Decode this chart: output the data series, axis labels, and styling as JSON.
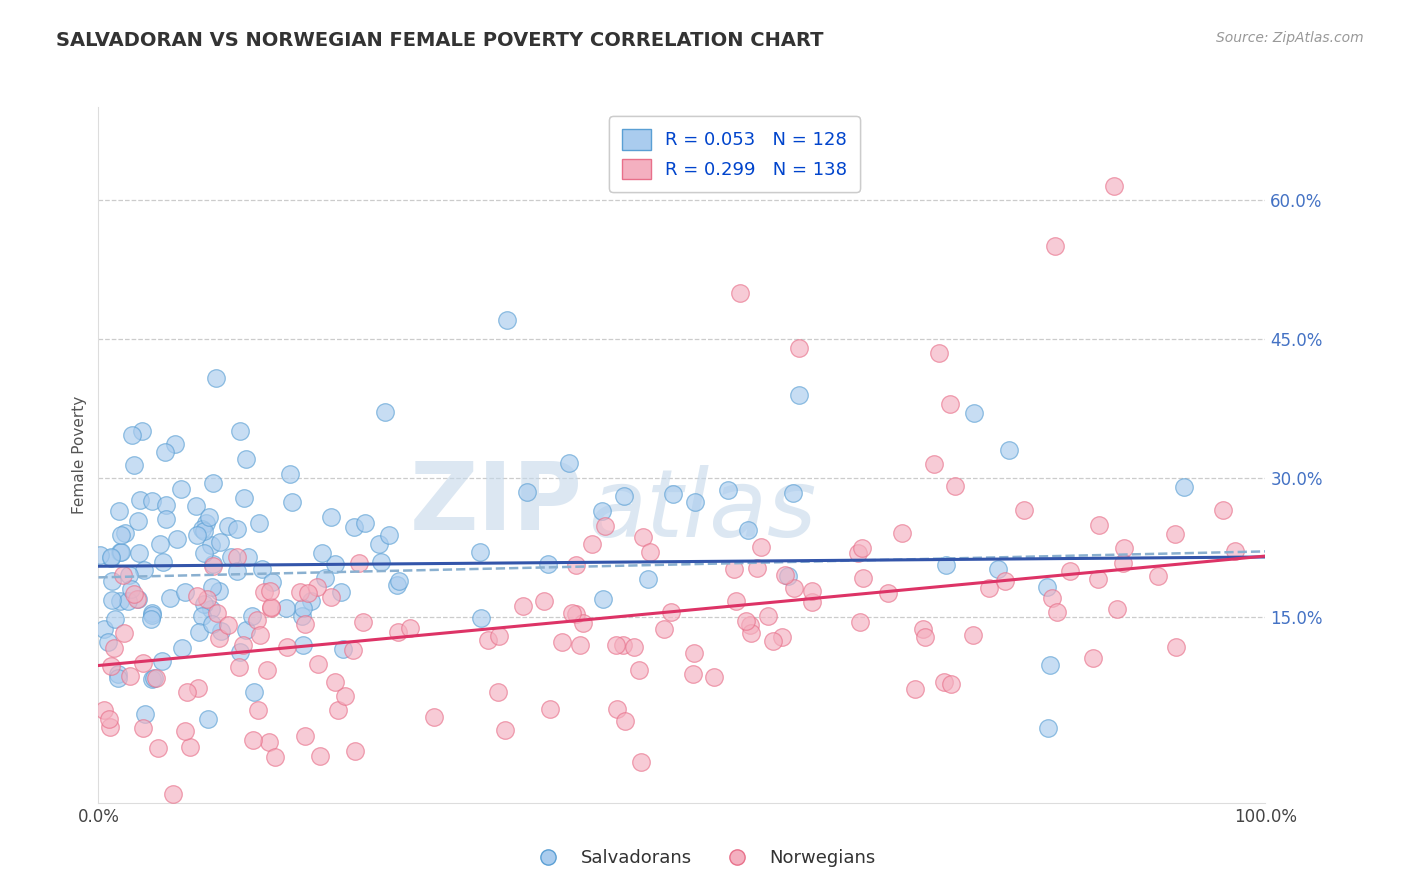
{
  "title": "SALVADORAN VS NORWEGIAN FEMALE POVERTY CORRELATION CHART",
  "source": "Source: ZipAtlas.com",
  "ylabel": "Female Poverty",
  "xlim": [
    0,
    1.0
  ],
  "ylim": [
    -0.05,
    0.7
  ],
  "ytick_labels_right": [
    "15.0%",
    "30.0%",
    "45.0%",
    "60.0%"
  ],
  "ytick_vals_right": [
    0.15,
    0.3,
    0.45,
    0.6
  ],
  "salvadoran_label": "Salvadorans",
  "norwegian_label": "Norwegians",
  "blue_color": "#5a9fd4",
  "pink_color": "#e8708a",
  "blue_fill": "#aaccee",
  "pink_fill": "#f4b0c0",
  "trend_blue": "#3355aa",
  "trend_pink": "#dd3366",
  "trend_gray": "#8ab0d0",
  "watermark_zip": "ZIP",
  "watermark_atlas": "atlas",
  "blue_intercept": 0.205,
  "blue_slope": 0.01,
  "pink_intercept": 0.098,
  "pink_slope": 0.118,
  "gray_intercept": 0.193,
  "gray_slope": 0.028
}
